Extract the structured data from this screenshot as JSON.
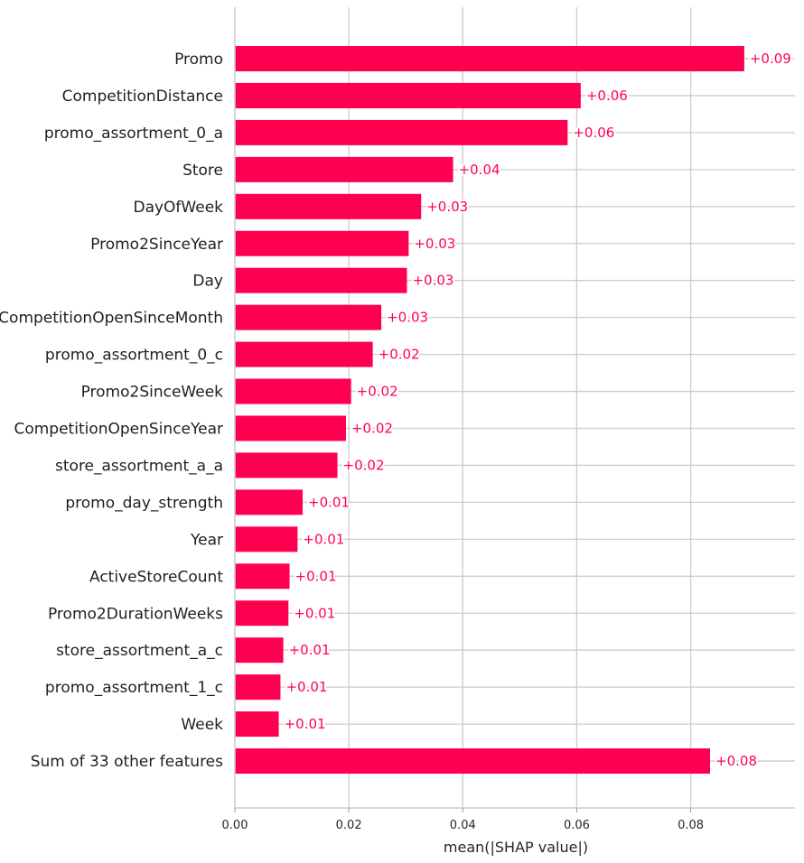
{
  "chart_data": {
    "type": "bar",
    "orientation": "horizontal",
    "categories": [
      "Promo",
      "CompetitionDistance",
      "promo_assortment_0_a",
      "Store",
      "DayOfWeek",
      "Promo2SinceYear",
      "Day",
      "CompetitionOpenSinceMonth",
      "promo_assortment_0_c",
      "Promo2SinceWeek",
      "CompetitionOpenSinceYear",
      "store_assortment_a_a",
      "promo_day_strength",
      "Year",
      "ActiveStoreCount",
      "Promo2DurationWeeks",
      "store_assortment_a_c",
      "promo_assortment_1_c",
      "Week",
      "Sum of 33 other features"
    ],
    "values": [
      0.0894,
      0.0607,
      0.0584,
      0.0383,
      0.0327,
      0.0305,
      0.0302,
      0.0257,
      0.0242,
      0.0204,
      0.0195,
      0.018,
      0.0119,
      0.011,
      0.0096,
      0.0094,
      0.0085,
      0.008,
      0.0077,
      0.0834
    ],
    "value_labels": [
      "+0.09",
      "+0.06",
      "+0.06",
      "+0.04",
      "+0.03",
      "+0.03",
      "+0.03",
      "+0.03",
      "+0.02",
      "+0.02",
      "+0.02",
      "+0.02",
      "+0.01",
      "+0.01",
      "+0.01",
      "+0.01",
      "+0.01",
      "+0.01",
      "+0.01",
      "+0.08"
    ],
    "xticks": [
      0.0,
      0.02,
      0.04,
      0.06,
      0.08
    ],
    "xtick_labels": [
      "0.00",
      "0.02",
      "0.04",
      "0.06",
      "0.08"
    ],
    "xlim": [
      0,
      0.0983
    ],
    "xlabel": "mean(|SHAP value|)",
    "ylabel": "",
    "title": "",
    "grid": true,
    "bar_color": "#ff0051",
    "grid_color": "#cccccc",
    "axis_color": "#cccccc"
  }
}
